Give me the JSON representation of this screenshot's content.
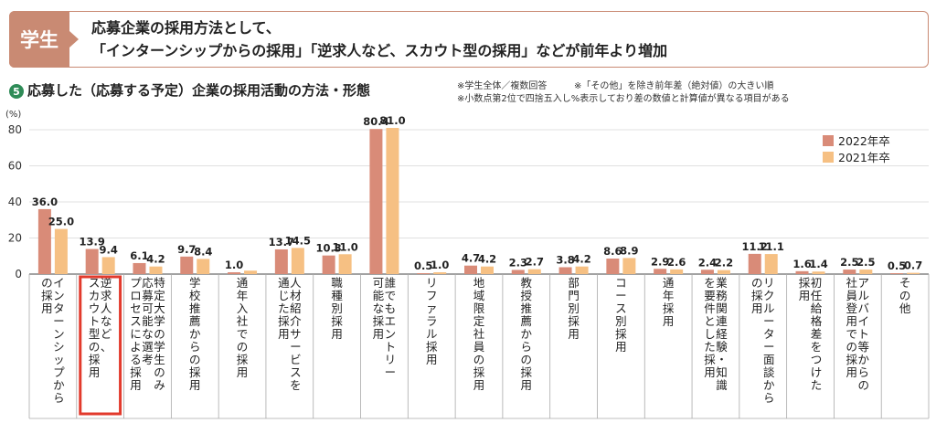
{
  "header": {
    "badge": "学生",
    "line1": "応募企業の採用方法として、",
    "line2": "「インターンシップからの採用」「逆求人など、スカウト型の採用」などが前年より増加"
  },
  "chart_header": {
    "number": "5",
    "title": "応募した（応募する予定）企業の採用活動の方法・形態",
    "note1": "※学生全体／複数回答",
    "note2": "※「その他」を除き前年差（絶対値）の大きい順",
    "note3": "※小数点第2位で四捨五入し%表示しており差の数値と計算値が異なる項目がある"
  },
  "colors": {
    "s2022": "#d98b78",
    "s2021": "#f6c083",
    "highlight": "#e23a2c",
    "accent": "#c98a73"
  },
  "chart_data": {
    "type": "bar",
    "ylabel": "(%)",
    "ylim": [
      0,
      80
    ],
    "yticks": [
      "0",
      "20",
      "40",
      "60",
      "80"
    ],
    "legend_position": "top-right",
    "series": [
      {
        "name": "2022年卒",
        "values": [
          36.0,
          13.9,
          6.1,
          9.7,
          1.0,
          13.7,
          10.3,
          80.4,
          0.5,
          4.7,
          2.3,
          3.8,
          8.6,
          2.9,
          2.4,
          11.2,
          1.6,
          2.5,
          0.5
        ]
      },
      {
        "name": "2021年卒",
        "values": [
          25.0,
          9.4,
          4.2,
          8.4,
          1.9,
          14.5,
          11.0,
          81.0,
          1.0,
          4.2,
          2.7,
          4.2,
          8.9,
          2.6,
          2.2,
          11.1,
          1.4,
          2.5,
          0.7
        ]
      }
    ],
    "labels_2022": [
      "36.0",
      "13.9",
      "6.1",
      "9.7",
      "1.0",
      "13.7",
      "10.3",
      "80.4",
      "0.5",
      "4.7",
      "2.3",
      "3.8",
      "8.6",
      "2.9",
      "2.4",
      "11.2",
      "1.6",
      "2.5",
      "0.5"
    ],
    "labels_2021": [
      "25.0",
      "9.4",
      "4.2",
      "8.4",
      "",
      "14.5",
      "11.0",
      "81.0",
      "1.0",
      "4.2",
      "2.7",
      "4.2",
      "8.9",
      "2.6",
      "2.2",
      "11.1",
      "1.4",
      "2.5",
      "0.7"
    ],
    "categories": [
      [
        "インターンシップから",
        "の採用"
      ],
      [
        "逆求人など、",
        "スカウト型の採用"
      ],
      [
        "特定大学の学生のみ",
        "応募可能な選考",
        "プロセスによる採用"
      ],
      [
        "学校推薦からの採用"
      ],
      [
        "通年入社での採用"
      ],
      [
        "人材紹介サービスを",
        "通じた採用"
      ],
      [
        "職種別採用"
      ],
      [
        "誰でもエントリー",
        "可能な採用"
      ],
      [
        "リファラル採用"
      ],
      [
        "地域限定社員の採用"
      ],
      [
        "教授推薦からの採用"
      ],
      [
        "部門別採用"
      ],
      [
        "コース別採用"
      ],
      [
        "通年採用"
      ],
      [
        "業務関連経験・知識",
        "を要件とした採用"
      ],
      [
        "リクルーター面談から",
        "の採用"
      ],
      [
        "初任給格差をつけた",
        "採用"
      ],
      [
        "アルバイト等からの",
        "社員登用での採用"
      ],
      [
        "その他"
      ]
    ],
    "highlight_index": 1
  }
}
